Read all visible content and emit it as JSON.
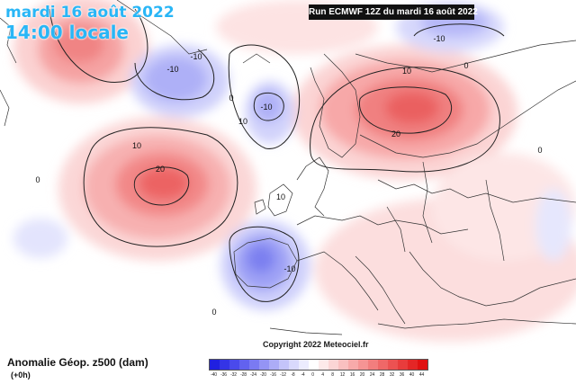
{
  "header": {
    "date_text": "mardi 16 août 2022",
    "time_text": "14:00 locale",
    "run_text": "Run ECMWF 12Z du mardi 16 août 2022"
  },
  "footer": {
    "copyright": "Copyright 2022 Meteociel.fr"
  },
  "legend": {
    "title": "Anomalie Géop. z500 (dam)",
    "lead_time": "(+0h)",
    "values": [
      "-40",
      "-36",
      "-32",
      "-28",
      "-24",
      "-20",
      "-16",
      "-12",
      "-8",
      "-4",
      "0",
      "4",
      "8",
      "12",
      "16",
      "20",
      "24",
      "28",
      "32",
      "36",
      "40",
      "44"
    ],
    "colors": [
      "#2020e0",
      "#3434e6",
      "#4a4aec",
      "#6262ef",
      "#7a7af2",
      "#9494f5",
      "#acacf7",
      "#c4c4fa",
      "#d9d9fc",
      "#ececfe",
      "#ffffff",
      "#fdeaea",
      "#fbd5d5",
      "#f9c0c0",
      "#f7aaaa",
      "#f59494",
      "#f27e7e",
      "#ef6868",
      "#ec5252",
      "#e83c3c",
      "#e42626",
      "#e01010"
    ]
  },
  "contour_labels": [
    "-10",
    "-10",
    "-10",
    "-10",
    "-10",
    "10",
    "10",
    "10",
    "10",
    "20",
    "20",
    "0",
    "0",
    "0",
    "0",
    "0"
  ],
  "colors": {
    "accent_title": "#29b6f6",
    "positive_anomaly": "#f06262",
    "negative_anomaly": "#6a6af0"
  }
}
